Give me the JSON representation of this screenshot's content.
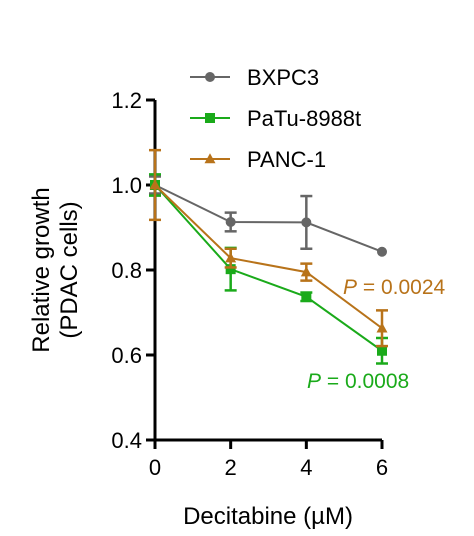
{
  "chart_data": {
    "type": "line",
    "xlabel": "Decitabine (µM)",
    "ylabel": "Relative growth",
    "ylabel2": "(PDAC cells)",
    "xlim": [
      0,
      6
    ],
    "ylim": [
      0.4,
      1.2
    ],
    "xticks": [
      "0",
      "2",
      "4",
      "6"
    ],
    "yticks": [
      "0.4",
      "0.6",
      "0.8",
      "1.0",
      "1.2"
    ],
    "grid": false,
    "legend_position": "top-right",
    "x": [
      0,
      2,
      4,
      6
    ],
    "series": [
      {
        "name": "BXPC3",
        "color": "#666666",
        "marker": "circle",
        "values": [
          1.0,
          0.913,
          0.912,
          0.843
        ],
        "errors": [
          0.02,
          0.022,
          0.062,
          0.0
        ]
      },
      {
        "name": "PaTu-8988t",
        "color": "#1aaa1a",
        "marker": "square",
        "values": [
          1.0,
          0.802,
          0.737,
          0.61
        ],
        "errors": [
          0.025,
          0.05,
          0.01,
          0.03
        ]
      },
      {
        "name": "PANC-1",
        "color": "#b8731a",
        "marker": "triangle",
        "values": [
          1.0,
          0.828,
          0.795,
          0.663
        ],
        "errors": [
          0.082,
          0.022,
          0.02,
          0.042
        ]
      }
    ],
    "annotations": [
      {
        "text": "P = 0.0024",
        "italic_prefix": "P",
        "rest": " = 0.0024",
        "color": "#b8731a"
      },
      {
        "text": "P = 0.0008",
        "italic_prefix": "P",
        "rest": " = 0.0008",
        "color": "#1aaa1a"
      }
    ]
  }
}
